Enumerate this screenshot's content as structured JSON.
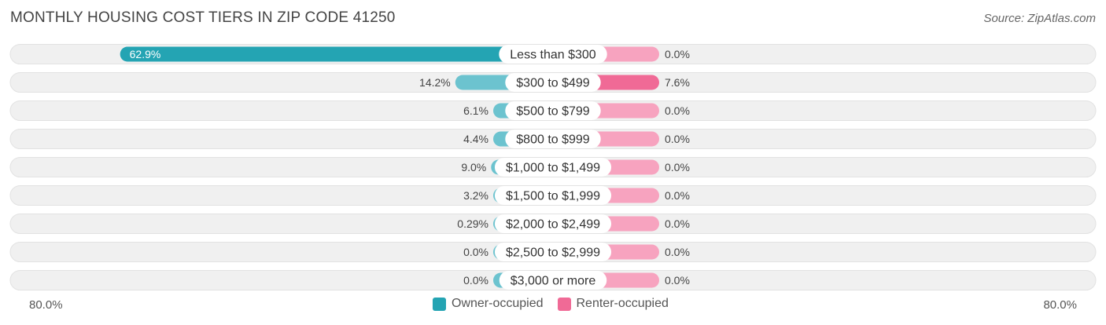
{
  "title": "MONTHLY HOUSING COST TIERS IN ZIP CODE 41250",
  "source": "Source: ZipAtlas.com",
  "axis": {
    "left_label": "80.0%",
    "right_label": "80.0%"
  },
  "colors": {
    "owner": "#6cc3cf",
    "owner_strong": "#24a4b3",
    "renter": "#f7a3bf",
    "renter_strong": "#f06a96",
    "row_bg": "#f0f0f0"
  },
  "legend": {
    "owner": "Owner-occupied",
    "renter": "Renter-occupied"
  },
  "chart_data": {
    "type": "bar",
    "title": "MONTHLY HOUSING COST TIERS IN ZIP CODE 41250",
    "xlim": [
      -80,
      80
    ],
    "categories": [
      "Less than $300",
      "$300 to $499",
      "$500 to $799",
      "$800 to $999",
      "$1,000 to $1,499",
      "$1,500 to $1,999",
      "$2,000 to $2,499",
      "$2,500 to $2,999",
      "$3,000 or more"
    ],
    "series": [
      {
        "name": "Owner-occupied",
        "values": [
          62.9,
          14.2,
          6.1,
          4.4,
          9.0,
          3.2,
          0.29,
          0.0,
          0.0
        ],
        "labels": [
          "62.9%",
          "14.2%",
          "6.1%",
          "4.4%",
          "9.0%",
          "3.2%",
          "0.29%",
          "0.0%",
          "0.0%"
        ]
      },
      {
        "name": "Renter-occupied",
        "values": [
          0.0,
          7.6,
          0.0,
          0.0,
          0.0,
          0.0,
          0.0,
          0.0,
          0.0
        ],
        "labels": [
          "0.0%",
          "7.6%",
          "0.0%",
          "0.0%",
          "0.0%",
          "0.0%",
          "0.0%",
          "0.0%",
          "0.0%"
        ]
      }
    ]
  }
}
